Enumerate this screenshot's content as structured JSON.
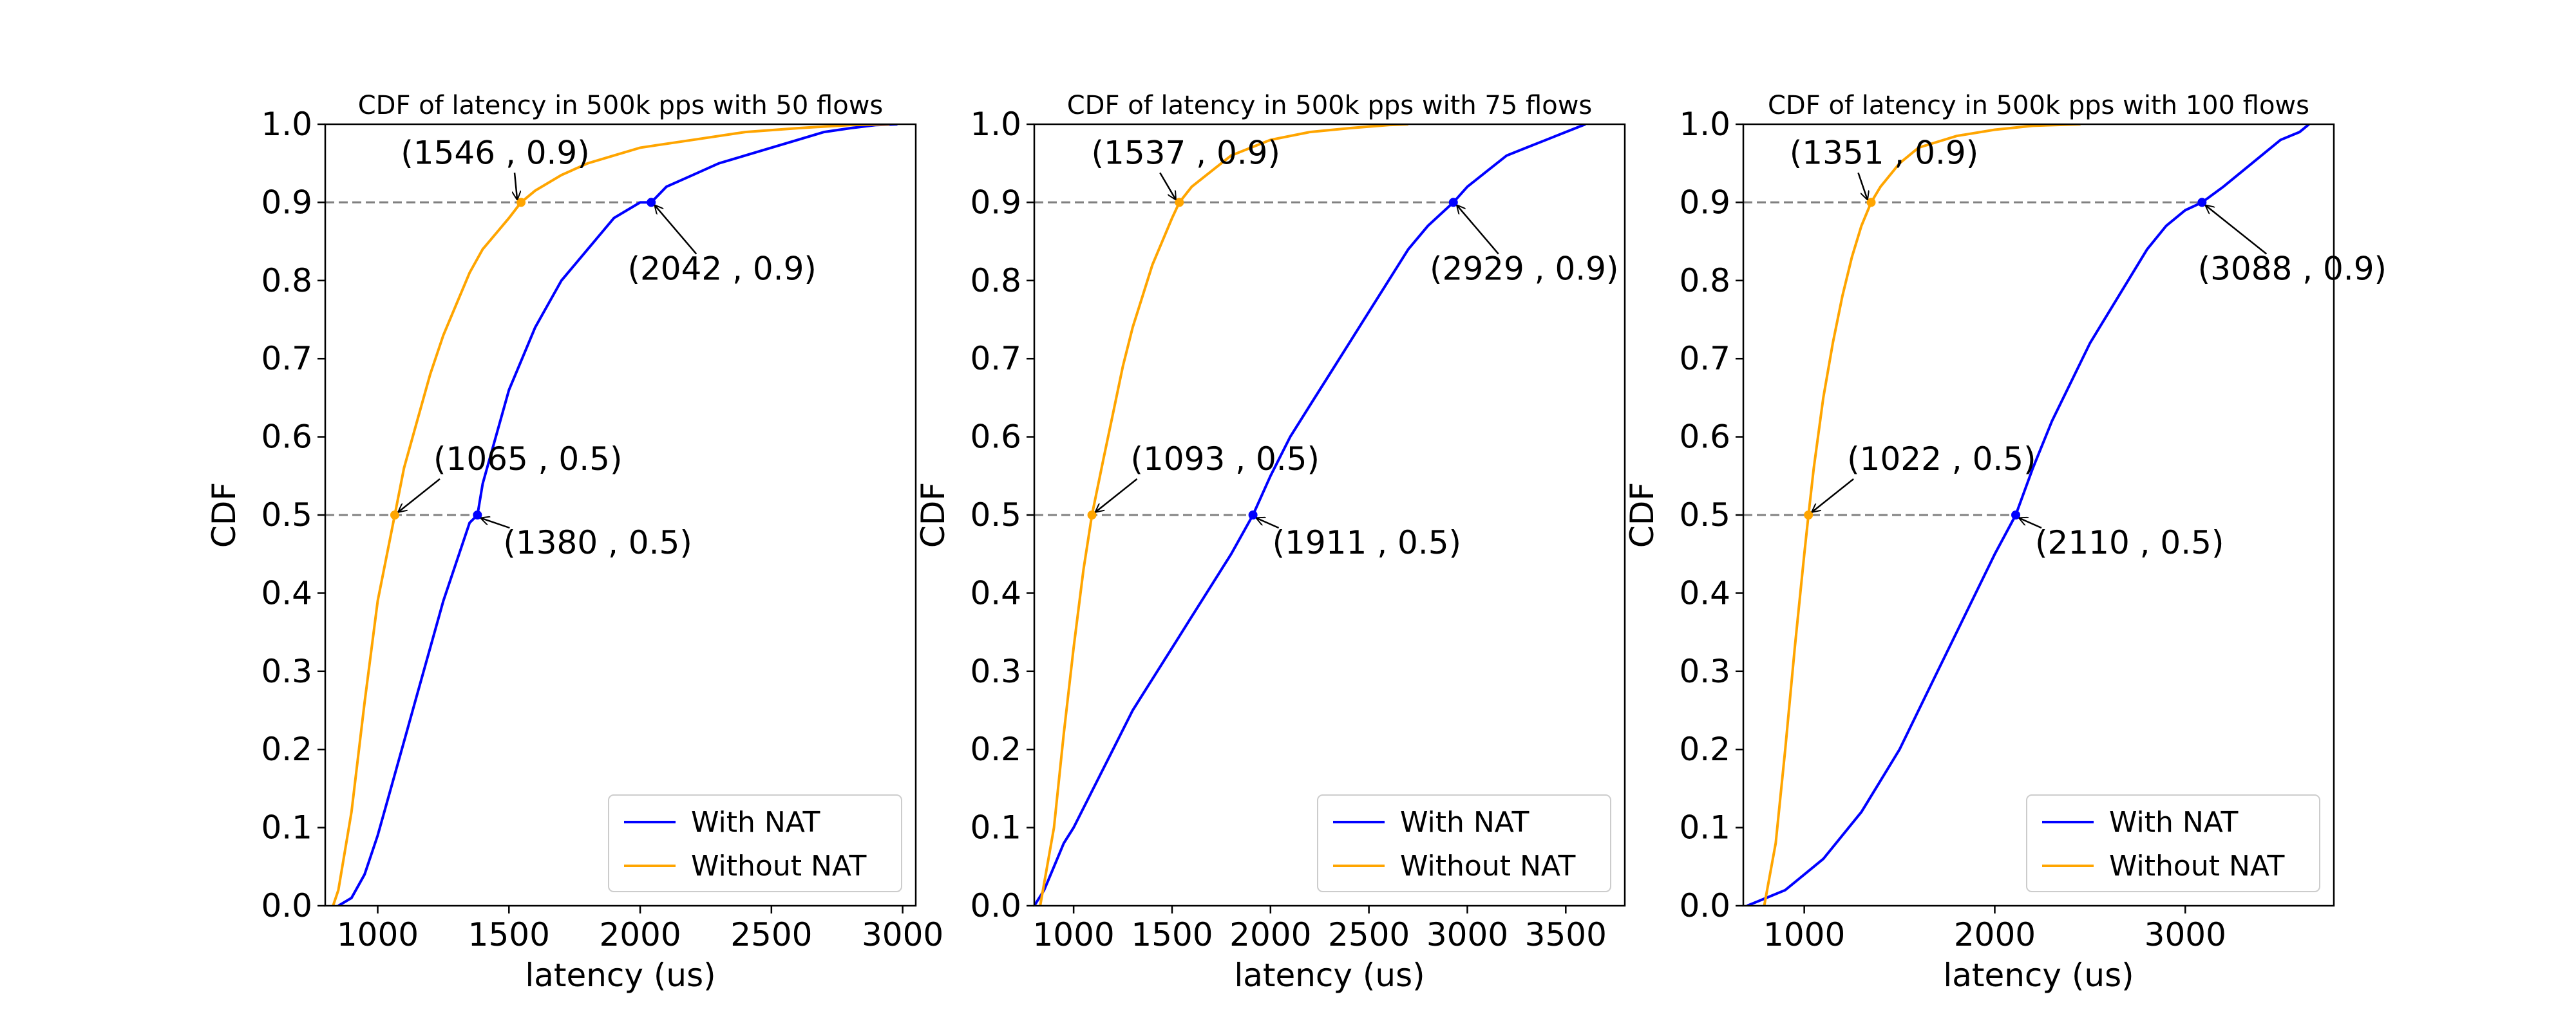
{
  "figure": {
    "background": "#ffffff"
  },
  "colors": {
    "with_nat": "#0000ff",
    "without_nat": "#ffa500",
    "reference_line": "#808080",
    "axes": "#000000"
  },
  "chart_data": [
    {
      "type": "line",
      "title": "CDF of latency in 500k pps with 50 flows",
      "xlabel": "latency (us)",
      "ylabel": "CDF",
      "xlim": [
        800,
        3050
      ],
      "ylim": [
        0,
        1
      ],
      "xticks": [
        1000,
        1500,
        2000,
        2500,
        3000
      ],
      "yticks": [
        0.0,
        0.1,
        0.2,
        0.3,
        0.4,
        0.5,
        0.6,
        0.7,
        0.8,
        0.9,
        1.0
      ],
      "legend": {
        "position": "bottom-right",
        "entries": [
          "With NAT",
          "Without NAT"
        ]
      },
      "series": [
        {
          "name": "With NAT",
          "color": "#0000ff",
          "x": [
            850,
            900,
            950,
            1000,
            1050,
            1100,
            1150,
            1200,
            1250,
            1300,
            1350,
            1380,
            1400,
            1450,
            1500,
            1550,
            1600,
            1650,
            1700,
            1750,
            1800,
            1850,
            1900,
            1950,
            2000,
            2042,
            2100,
            2200,
            2300,
            2400,
            2500,
            2600,
            2700,
            2800,
            2900,
            2980
          ],
          "y": [
            0.0,
            0.01,
            0.04,
            0.09,
            0.15,
            0.21,
            0.27,
            0.33,
            0.39,
            0.44,
            0.49,
            0.5,
            0.54,
            0.6,
            0.66,
            0.7,
            0.74,
            0.77,
            0.8,
            0.82,
            0.84,
            0.86,
            0.88,
            0.89,
            0.9,
            0.9,
            0.92,
            0.935,
            0.95,
            0.96,
            0.97,
            0.98,
            0.99,
            0.995,
            0.999,
            1.0
          ]
        },
        {
          "name": "Without NAT",
          "color": "#ffa500",
          "x": [
            830,
            850,
            900,
            950,
            1000,
            1065,
            1100,
            1150,
            1200,
            1250,
            1300,
            1350,
            1400,
            1450,
            1500,
            1546,
            1600,
            1700,
            1800,
            1900,
            2000,
            2200,
            2400,
            2600,
            2800,
            2950
          ],
          "y": [
            0.0,
            0.02,
            0.12,
            0.26,
            0.39,
            0.5,
            0.56,
            0.62,
            0.68,
            0.73,
            0.77,
            0.81,
            0.84,
            0.86,
            0.88,
            0.9,
            0.915,
            0.935,
            0.95,
            0.96,
            0.97,
            0.98,
            0.99,
            0.995,
            0.999,
            1.0
          ]
        }
      ],
      "annotations": [
        {
          "text": "(1546 , 0.9)",
          "x": 1546,
          "y": 0.9,
          "color": "#ffa500"
        },
        {
          "text": "(2042 , 0.9)",
          "x": 2042,
          "y": 0.9,
          "color": "#0000ff"
        },
        {
          "text": "(1065 , 0.5)",
          "x": 1065,
          "y": 0.5,
          "color": "#ffa500"
        },
        {
          "text": "(1380 , 0.5)",
          "x": 1380,
          "y": 0.5,
          "color": "#0000ff"
        }
      ]
    },
    {
      "type": "line",
      "title": "CDF of latency in 500k pps with 75 flows",
      "xlabel": "latency (us)",
      "ylabel": "CDF",
      "xlim": [
        800,
        3800
      ],
      "ylim": [
        0,
        1
      ],
      "xticks": [
        1000,
        1500,
        2000,
        2500,
        3000,
        3500
      ],
      "yticks": [
        0.0,
        0.1,
        0.2,
        0.3,
        0.4,
        0.5,
        0.6,
        0.7,
        0.8,
        0.9,
        1.0
      ],
      "legend": {
        "position": "bottom-right",
        "entries": [
          "With NAT",
          "Without NAT"
        ]
      },
      "series": [
        {
          "name": "With NAT",
          "color": "#0000ff",
          "x": [
            800,
            850,
            900,
            950,
            1000,
            1100,
            1200,
            1300,
            1400,
            1500,
            1600,
            1700,
            1800,
            1911,
            2000,
            2100,
            2200,
            2300,
            2400,
            2500,
            2600,
            2700,
            2800,
            2929,
            3000,
            3100,
            3200,
            3300,
            3400,
            3500,
            3600
          ],
          "y": [
            0.0,
            0.02,
            0.05,
            0.08,
            0.1,
            0.15,
            0.2,
            0.25,
            0.29,
            0.33,
            0.37,
            0.41,
            0.45,
            0.5,
            0.55,
            0.6,
            0.64,
            0.68,
            0.72,
            0.76,
            0.8,
            0.84,
            0.87,
            0.9,
            0.92,
            0.94,
            0.96,
            0.97,
            0.98,
            0.99,
            1.0
          ]
        },
        {
          "name": "Without NAT",
          "color": "#ffa500",
          "x": [
            830,
            900,
            950,
            1000,
            1050,
            1093,
            1150,
            1200,
            1250,
            1300,
            1350,
            1400,
            1450,
            1500,
            1537,
            1600,
            1700,
            1800,
            2000,
            2200,
            2400,
            2600,
            2700
          ],
          "y": [
            0.0,
            0.1,
            0.22,
            0.33,
            0.43,
            0.5,
            0.57,
            0.63,
            0.69,
            0.74,
            0.78,
            0.82,
            0.85,
            0.88,
            0.9,
            0.92,
            0.94,
            0.96,
            0.98,
            0.99,
            0.995,
            0.999,
            1.0
          ]
        }
      ],
      "annotations": [
        {
          "text": "(1537 , 0.9)",
          "x": 1537,
          "y": 0.9,
          "color": "#ffa500"
        },
        {
          "text": "(2929 , 0.9)",
          "x": 2929,
          "y": 0.9,
          "color": "#0000ff"
        },
        {
          "text": "(1093 , 0.5)",
          "x": 1093,
          "y": 0.5,
          "color": "#ffa500"
        },
        {
          "text": "(1911 , 0.5)",
          "x": 1911,
          "y": 0.5,
          "color": "#0000ff"
        }
      ]
    },
    {
      "type": "line",
      "title": "CDF of latency in 500k pps with 100 flows",
      "xlabel": "latency (us)",
      "ylabel": "CDF",
      "xlim": [
        680,
        3780
      ],
      "ylim": [
        0,
        1
      ],
      "xticks": [
        1000,
        2000,
        3000
      ],
      "yticks": [
        0.0,
        0.1,
        0.2,
        0.3,
        0.4,
        0.5,
        0.6,
        0.7,
        0.8,
        0.9,
        1.0
      ],
      "legend": {
        "position": "bottom-right",
        "entries": [
          "With NAT",
          "Without NAT"
        ]
      },
      "series": [
        {
          "name": "With NAT",
          "color": "#0000ff",
          "x": [
            700,
            800,
            900,
            1000,
            1100,
            1200,
            1300,
            1400,
            1500,
            1600,
            1700,
            1800,
            1900,
            2000,
            2110,
            2200,
            2300,
            2400,
            2500,
            2600,
            2700,
            2800,
            2900,
            3000,
            3088,
            3200,
            3300,
            3400,
            3500,
            3600,
            3650
          ],
          "y": [
            0.0,
            0.01,
            0.02,
            0.04,
            0.06,
            0.09,
            0.12,
            0.16,
            0.2,
            0.25,
            0.3,
            0.35,
            0.4,
            0.45,
            0.5,
            0.56,
            0.62,
            0.67,
            0.72,
            0.76,
            0.8,
            0.84,
            0.87,
            0.89,
            0.9,
            0.92,
            0.94,
            0.96,
            0.98,
            0.99,
            1.0
          ]
        },
        {
          "name": "Without NAT",
          "color": "#ffa500",
          "x": [
            790,
            850,
            900,
            950,
            1000,
            1022,
            1050,
            1100,
            1150,
            1200,
            1250,
            1300,
            1351,
            1400,
            1500,
            1600,
            1800,
            2000,
            2200,
            2450
          ],
          "y": [
            0.0,
            0.08,
            0.2,
            0.33,
            0.45,
            0.5,
            0.56,
            0.65,
            0.72,
            0.78,
            0.83,
            0.87,
            0.9,
            0.92,
            0.95,
            0.97,
            0.985,
            0.993,
            0.998,
            1.0
          ]
        }
      ],
      "annotations": [
        {
          "text": "(1351 , 0.9)",
          "x": 1351,
          "y": 0.9,
          "color": "#ffa500"
        },
        {
          "text": "(3088 , 0.9)",
          "x": 3088,
          "y": 0.9,
          "color": "#0000ff"
        },
        {
          "text": "(1022 , 0.5)",
          "x": 1022,
          "y": 0.5,
          "color": "#ffa500"
        },
        {
          "text": "(2110 , 0.5)",
          "x": 2110,
          "y": 0.5,
          "color": "#0000ff"
        }
      ]
    }
  ]
}
